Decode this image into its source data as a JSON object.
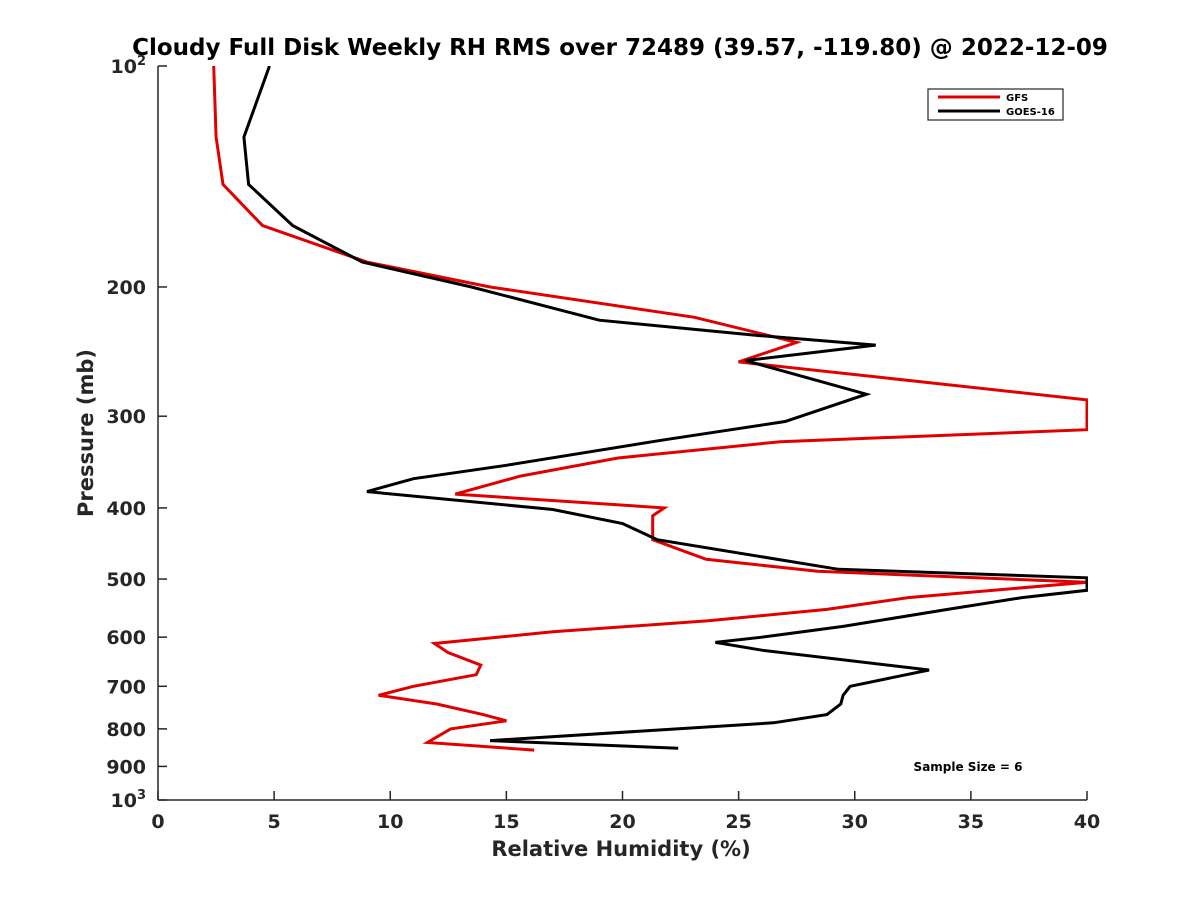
{
  "chart_data": {
    "type": "line",
    "title": "Cloudy Full Disk Weekly RH RMS over 72489 (39.57, -119.80) @ 2022-12-09",
    "xlabel": "Relative Humidity (%)",
    "ylabel": "Pressure (mb)",
    "xlim": [
      0,
      40
    ],
    "ylim": [
      100,
      1000
    ],
    "yscale": "log",
    "y_reversed": true,
    "x_ticks": [
      "0",
      "5",
      "10",
      "15",
      "20",
      "25",
      "30",
      "35",
      "40"
    ],
    "y_ticks": [
      {
        "value": 100,
        "base": "10",
        "exp": "2"
      },
      {
        "value": 200,
        "label": "200"
      },
      {
        "value": 300,
        "label": "300"
      },
      {
        "value": 400,
        "label": "400"
      },
      {
        "value": 500,
        "label": "500"
      },
      {
        "value": 600,
        "label": "600"
      },
      {
        "value": 700,
        "label": "700"
      },
      {
        "value": 800,
        "label": "800"
      },
      {
        "value": 900,
        "label": "900"
      },
      {
        "value": 1000,
        "base": "10",
        "exp": "3"
      }
    ],
    "grid": false,
    "legend_position": "top-right",
    "annotation": "Sample Size = 6",
    "series": [
      {
        "name": "GFS",
        "color": "#e00000",
        "points": [
          [
            2.4,
            100
          ],
          [
            2.5,
            125
          ],
          [
            2.8,
            145
          ],
          [
            4.5,
            165
          ],
          [
            9.0,
            185
          ],
          [
            14.3,
            200
          ],
          [
            23.1,
            220
          ],
          [
            27.5,
            238
          ],
          [
            25.0,
            253
          ],
          [
            40.0,
            285
          ],
          [
            40.0,
            313
          ],
          [
            26.8,
            325
          ],
          [
            19.8,
            342
          ],
          [
            15.6,
            362
          ],
          [
            12.8,
            383
          ],
          [
            21.8,
            400
          ],
          [
            21.3,
            410
          ],
          [
            21.3,
            442
          ],
          [
            23.6,
            470
          ],
          [
            28.4,
            488
          ],
          [
            40.0,
            505
          ],
          [
            32.3,
            530
          ],
          [
            28.8,
            550
          ],
          [
            23.7,
            570
          ],
          [
            17.0,
            590
          ],
          [
            11.9,
            612
          ],
          [
            12.5,
            630
          ],
          [
            13.9,
            655
          ],
          [
            13.7,
            675
          ],
          [
            11.0,
            700
          ],
          [
            9.5,
            720
          ],
          [
            12.0,
            740
          ],
          [
            14.0,
            765
          ],
          [
            15.0,
            780
          ],
          [
            12.6,
            800
          ],
          [
            11.6,
            835
          ],
          [
            16.2,
            855
          ]
        ]
      },
      {
        "name": "GOES-16",
        "color": "#000000",
        "points": [
          [
            4.8,
            100
          ],
          [
            3.7,
            125
          ],
          [
            3.9,
            145
          ],
          [
            5.8,
            165
          ],
          [
            8.8,
            185
          ],
          [
            13.5,
            200
          ],
          [
            19.0,
            222
          ],
          [
            25.9,
            233
          ],
          [
            30.9,
            240
          ],
          [
            25.3,
            252
          ],
          [
            30.5,
            280
          ],
          [
            27.0,
            305
          ],
          [
            21.8,
            323
          ],
          [
            15.0,
            350
          ],
          [
            11.0,
            365
          ],
          [
            9.0,
            380
          ],
          [
            17.0,
            402
          ],
          [
            20.0,
            420
          ],
          [
            21.5,
            442
          ],
          [
            29.3,
            485
          ],
          [
            40.0,
            498
          ],
          [
            40.0,
            518
          ],
          [
            37.2,
            530
          ],
          [
            34.0,
            550
          ],
          [
            29.5,
            580
          ],
          [
            26.0,
            600
          ],
          [
            24.0,
            610
          ],
          [
            26.0,
            625
          ],
          [
            33.2,
            665
          ],
          [
            29.8,
            700
          ],
          [
            29.5,
            720
          ],
          [
            29.4,
            740
          ],
          [
            28.8,
            765
          ],
          [
            26.5,
            785
          ],
          [
            14.3,
            830
          ],
          [
            22.4,
            850
          ]
        ]
      }
    ]
  }
}
